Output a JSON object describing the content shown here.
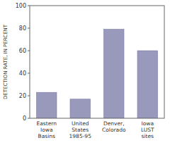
{
  "chart_data": {
    "type": "bar",
    "categories": [
      "Eastern\nIowa\nBasins",
      "United\nStates\n1985-95",
      "Denver,\nColorado",
      "Iowa\nLUST\nsites"
    ],
    "values": [
      23,
      17,
      79,
      60
    ],
    "color": "#9999bb",
    "ylabel": "DETECTION RATE, IN PERCENT",
    "ylim": [
      0,
      100
    ],
    "yticks": [
      0,
      20,
      40,
      60,
      80,
      100
    ]
  }
}
